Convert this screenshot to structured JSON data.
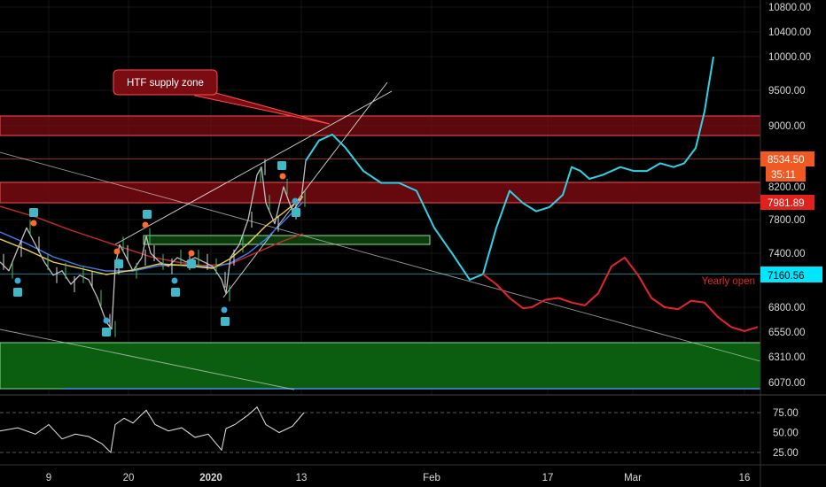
{
  "colors": {
    "background": "#000000",
    "grid": "#1b1b1b",
    "supply_zone": "#7a0c12",
    "supply_zone_border": "#ff4d4d",
    "demand_zone": "#0b5e10",
    "demand_zone_border": "#7fe08a",
    "projection_up": "#2fd3e6",
    "projection_down": "#e8242a",
    "price_tag_current": "#f05a22",
    "price_tag_red": "#e0211c",
    "price_tag_cyan": "#00e6ff",
    "yearly_open_label": "#e8242a",
    "annotation_bg": "#7a0c12",
    "annotation_border": "#ff4d4d"
  },
  "annotation": {
    "label": "HTF supply zone"
  },
  "yearly_open_label": "Yearly open",
  "price_tags": {
    "current": "8534.50",
    "countdown": "35:11",
    "red": "7981.89",
    "cyan": "7160.56"
  },
  "chart_data": [
    {
      "type": "line",
      "title": "",
      "x_labels": [
        "9",
        "20",
        "2020",
        "13",
        "Feb",
        "17",
        "Mar",
        "16"
      ],
      "price_axis_labels": [
        "10800.00",
        "10400.00",
        "10000.00",
        "9500.00",
        "9000.00",
        "8200.00",
        "7800.00",
        "7400.00",
        "6800.00",
        "6550.00",
        "6310.00",
        "6070.00"
      ],
      "y_scale": "log",
      "ylim": [
        5900,
        11100
      ],
      "zones": [
        {
          "name": "HTF supply zone",
          "low": 8850,
          "high": 9150
        },
        {
          "name": "supply",
          "low": 7960,
          "high": 8220
        },
        {
          "name": "demand",
          "low": 6090,
          "high": 6410
        }
      ],
      "levels": [
        {
          "name": "Yearly open",
          "value": 7160.56
        },
        {
          "name": "current",
          "value": 8534.5
        }
      ],
      "series": [
        {
          "name": "",
          "x": [
            0,
            10,
            20,
            30,
            40,
            50,
            60,
            70,
            80,
            90,
            100,
            110,
            120,
            126,
            130,
            135,
            140,
            150,
            160,
            165,
            170,
            180,
            190,
            200,
            210,
            220,
            230,
            240,
            250,
            255,
            260,
            270,
            280,
            290,
            295,
            300,
            310,
            320,
            330,
            340,
            345
          ],
          "y": [
            7300,
            7200,
            7450,
            7700,
            7500,
            7300,
            7150,
            7200,
            7050,
            7150,
            7100,
            6900,
            6650,
            6580,
            7250,
            7500,
            7400,
            7200,
            7350,
            7600,
            7400,
            7300,
            7250,
            7350,
            7300,
            7350,
            7300,
            7250,
            7100,
            6950,
            7350,
            7500,
            7800,
            8350,
            8450,
            8000,
            7750,
            8200,
            7900,
            8050,
            8534.5
          ]
        },
        {
          "name": "",
          "x": [
            345,
            360,
            375,
            390,
            410,
            430,
            450,
            470,
            490,
            510,
            530,
            545,
            560,
            575,
            590,
            605,
            620,
            635,
            645,
            655,
            665,
            680,
            700,
            715,
            730,
            745,
            760,
            772,
            785,
            795,
            800,
            805
          ],
          "y": [
            8534.5,
            8800,
            8880,
            8700,
            8400,
            8250,
            8250,
            8150,
            7700,
            7400,
            7100,
            7160.56,
            7700,
            8150,
            8000,
            7900,
            7950,
            8100,
            8450,
            8400,
            8300,
            8350,
            8450,
            8400,
            8400,
            8500,
            8450,
            8500,
            8700,
            9200,
            9600,
            10000
          ]
        },
        {
          "name": "",
          "x": [
            545,
            560,
            575,
            590,
            600,
            615,
            630,
            645,
            660,
            675,
            690,
            705,
            720,
            735,
            750,
            765,
            780,
            795,
            810,
            825,
            840,
            855
          ],
          "y": [
            7160.56,
            7050,
            6900,
            6790,
            6800,
            6880,
            6900,
            6850,
            6820,
            6950,
            7250,
            7350,
            7150,
            6900,
            6800,
            6780,
            6870,
            6850,
            6700,
            6600,
            6560,
            6600
          ]
        }
      ],
      "oscillator": {
        "type": "line",
        "y_labels": [
          "75.00",
          "50.00",
          "25.00"
        ],
        "ylim": [
          15,
          90
        ],
        "x": [
          0,
          20,
          40,
          55,
          70,
          85,
          100,
          115,
          125,
          130,
          140,
          150,
          165,
          175,
          190,
          205,
          220,
          235,
          250,
          255,
          265,
          280,
          290,
          300,
          315,
          330,
          343
        ],
        "y": [
          52,
          56,
          48,
          60,
          42,
          48,
          45,
          36,
          25,
          60,
          68,
          62,
          78,
          60,
          52,
          56,
          44,
          48,
          28,
          55,
          60,
          72,
          82,
          60,
          50,
          58,
          75
        ]
      }
    }
  ]
}
